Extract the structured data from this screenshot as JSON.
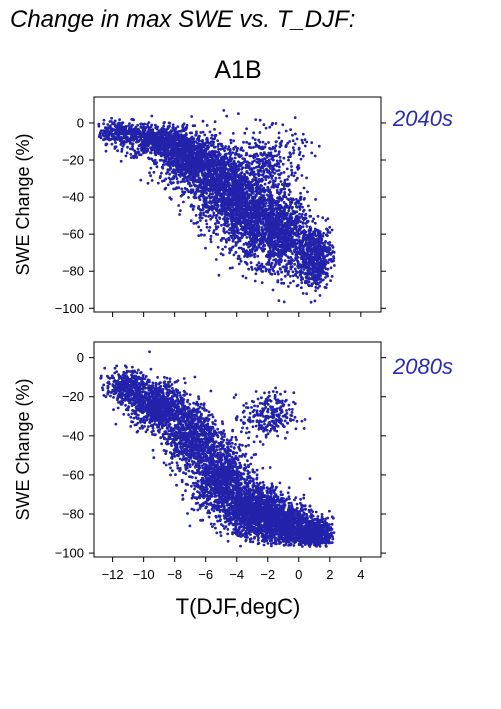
{
  "page_title": "Change in max SWE vs. T_DJF:",
  "scenario": "A1B",
  "xlabel": "T(DJF,degC)",
  "colors": {
    "points": "#2222aa",
    "period_label": "#2b2bb0",
    "axes": "#000000"
  },
  "chart_data": [
    {
      "type": "scatter",
      "panel_label": "2040s",
      "ylabel": "SWE Change (%)",
      "xlim": [
        -13.2,
        5.3
      ],
      "ylim": [
        -102,
        14
      ],
      "x_ticks": [
        -12,
        -10,
        -8,
        -6,
        -4,
        -2,
        0,
        2,
        4
      ],
      "y_ticks": [
        0,
        -20,
        -40,
        -60,
        -80,
        -100
      ],
      "x_tick_labels_shown": false,
      "grid": false,
      "legend": "none",
      "point_density": [
        {
          "x": -11.5,
          "y": -5,
          "spread_x": 1.5,
          "spread_y": 5,
          "weight": 300
        },
        {
          "x": -9,
          "y": -10,
          "spread_x": 1.8,
          "spread_y": 7,
          "weight": 700
        },
        {
          "x": -7,
          "y": -20,
          "spread_x": 1.6,
          "spread_y": 12,
          "weight": 900
        },
        {
          "x": -5,
          "y": -35,
          "spread_x": 1.6,
          "spread_y": 18,
          "weight": 1100
        },
        {
          "x": -3,
          "y": -50,
          "spread_x": 1.6,
          "spread_y": 20,
          "weight": 1100
        },
        {
          "x": -1,
          "y": -60,
          "spread_x": 1.4,
          "spread_y": 18,
          "weight": 900
        },
        {
          "x": 1,
          "y": -72,
          "spread_x": 1.0,
          "spread_y": 14,
          "weight": 600
        },
        {
          "x": -2,
          "y": -20,
          "spread_x": 2.0,
          "spread_y": 14,
          "weight": 300
        }
      ]
    },
    {
      "type": "scatter",
      "panel_label": "2080s",
      "ylabel": "SWE Change (%)",
      "xlim": [
        -13.2,
        5.3
      ],
      "ylim": [
        -102,
        8
      ],
      "x_ticks": [
        -12,
        -10,
        -8,
        -6,
        -4,
        -2,
        0,
        2,
        4
      ],
      "x_tick_labels": [
        "−12",
        "−10",
        "−8",
        "−6",
        "−4",
        "−2",
        "0",
        "2",
        "4"
      ],
      "y_ticks": [
        0,
        -20,
        -40,
        -60,
        -80,
        -100
      ],
      "x_tick_labels_shown": true,
      "grid": false,
      "legend": "none",
      "point_density": [
        {
          "x": -11,
          "y": -15,
          "spread_x": 1.2,
          "spread_y": 7,
          "weight": 400
        },
        {
          "x": -9,
          "y": -25,
          "spread_x": 1.4,
          "spread_y": 10,
          "weight": 800
        },
        {
          "x": -7,
          "y": -40,
          "spread_x": 1.4,
          "spread_y": 14,
          "weight": 900
        },
        {
          "x": -5,
          "y": -62,
          "spread_x": 1.5,
          "spread_y": 15,
          "weight": 1100
        },
        {
          "x": -3,
          "y": -78,
          "spread_x": 1.6,
          "spread_y": 11,
          "weight": 1200
        },
        {
          "x": -1,
          "y": -85,
          "spread_x": 1.5,
          "spread_y": 9,
          "weight": 1000
        },
        {
          "x": 1,
          "y": -90,
          "spread_x": 1.0,
          "spread_y": 6,
          "weight": 600
        },
        {
          "x": -2,
          "y": -30,
          "spread_x": 1.4,
          "spread_y": 10,
          "weight": 250
        }
      ]
    }
  ]
}
